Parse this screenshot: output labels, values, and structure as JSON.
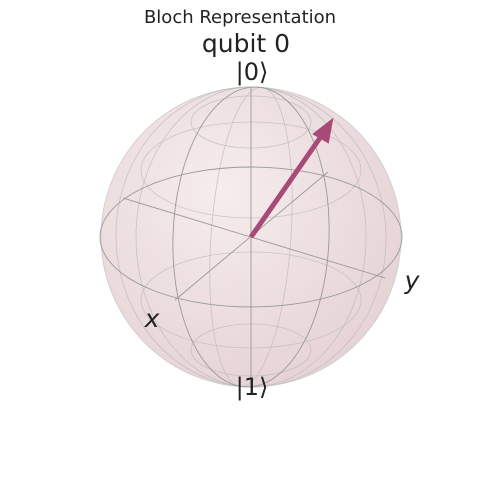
{
  "title": "Bloch Representation",
  "subtitle": "qubit 0",
  "labels": {
    "top": "|0⟩",
    "bottom": "|1⟩",
    "x": "x",
    "y": "y"
  }
}
